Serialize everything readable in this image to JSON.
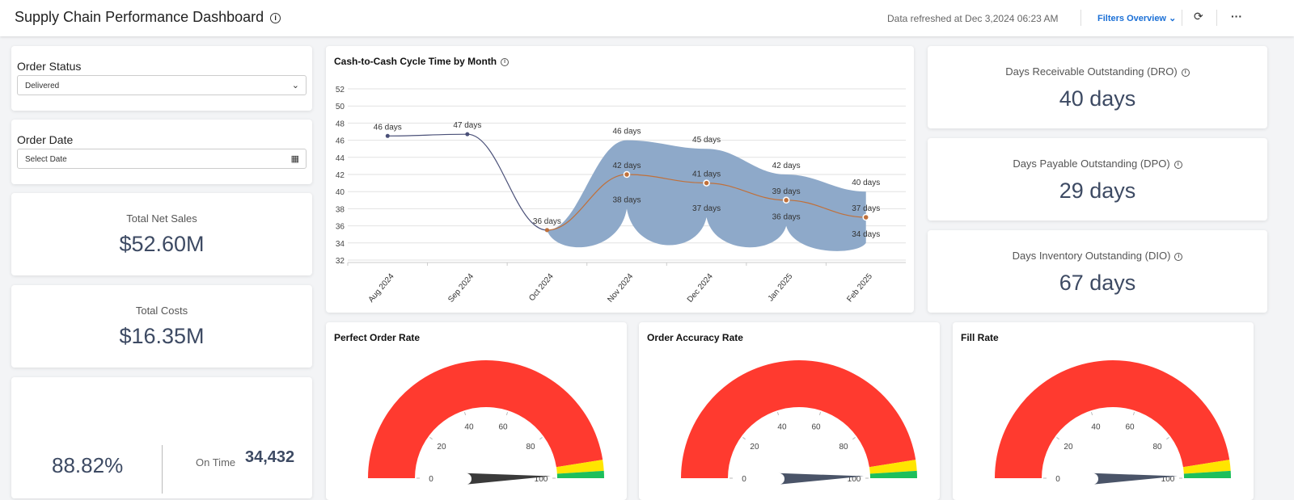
{
  "header": {
    "title": "Supply Chain Performance Dashboard",
    "refreshed": "Data refreshed at Dec 3,2024 06:23 AM",
    "filters_label": "Filters Overview"
  },
  "filters": {
    "order_status": {
      "label": "Order Status",
      "value": "Delivered"
    },
    "order_date": {
      "label": "Order Date",
      "placeholder": "Select Date"
    }
  },
  "kpis": {
    "net_sales": {
      "label": "Total Net Sales",
      "value": "$52.60M"
    },
    "costs": {
      "label": "Total Costs",
      "value": "$16.35M"
    },
    "on_time": {
      "percent": "88.82%",
      "label": "On Time",
      "count": "34,432"
    },
    "dro": {
      "label": "Days Receivable Outstanding (DRO)",
      "value": "40 days"
    },
    "dpo": {
      "label": "Days Payable Outstanding (DPO)",
      "value": "29 days"
    },
    "dio": {
      "label": "Days Inventory Outstanding (DIO)",
      "value": "67 days"
    }
  },
  "chart_data": [
    {
      "type": "line",
      "title": "Cash-to-Cash Cycle Time by Month",
      "categories": [
        "Aug 2024",
        "Sep 2024",
        "Oct 2024",
        "Nov 2024",
        "Dec 2024",
        "Jan 2025",
        "Feb 2025"
      ],
      "ylim": [
        32,
        52
      ],
      "yticks": [
        32,
        34,
        36,
        38,
        40,
        42,
        44,
        46,
        48,
        50,
        52
      ],
      "grid": true,
      "series": [
        {
          "kind": "actual",
          "color": "#4a5078",
          "values": [
            46.5,
            46.7,
            35.5,
            null,
            null,
            null,
            null
          ],
          "labels": [
            "46 days",
            "47 days",
            "36 days",
            null,
            null,
            null,
            null
          ]
        },
        {
          "kind": "forecast",
          "color": "#c0703a",
          "values": [
            null,
            null,
            35.5,
            42,
            41,
            39,
            37
          ],
          "labels": [
            null,
            null,
            null,
            "42 days",
            "41 days",
            "39 days",
            "37 days"
          ]
        },
        {
          "kind": "upper",
          "values": [
            null,
            null,
            35.5,
            46,
            45,
            42,
            40
          ],
          "labels": [
            null,
            null,
            null,
            "46 days",
            "45 days",
            "42 days",
            "40 days"
          ]
        },
        {
          "kind": "lower",
          "values": [
            null,
            null,
            35.5,
            38,
            37,
            36,
            34
          ],
          "labels": [
            null,
            null,
            null,
            "38 days",
            "37 days",
            "36 days",
            "34 days"
          ]
        }
      ],
      "band_color": "#8ea9c9"
    },
    {
      "type": "gauge",
      "title": "Perfect Order Rate",
      "min": 0,
      "max": 100,
      "ticks": [
        0,
        20,
        40,
        60,
        80,
        100
      ],
      "value": 99,
      "needle_color": "#3a3a3a",
      "ranges": [
        {
          "from": 0,
          "to": 95,
          "color": "#ff3a2f"
        },
        {
          "from": 95,
          "to": 98,
          "color": "#ffe500"
        },
        {
          "from": 98,
          "to": 100,
          "color": "#1dbf5c"
        }
      ]
    },
    {
      "type": "gauge",
      "title": "Order Accuracy Rate",
      "min": 0,
      "max": 100,
      "ticks": [
        0,
        20,
        40,
        60,
        80,
        100
      ],
      "value": 99,
      "needle_color": "#4a5468",
      "ranges": [
        {
          "from": 0,
          "to": 95,
          "color": "#ff3a2f"
        },
        {
          "from": 95,
          "to": 98,
          "color": "#ffe500"
        },
        {
          "from": 98,
          "to": 100,
          "color": "#1dbf5c"
        }
      ]
    },
    {
      "type": "gauge",
      "title": "Fill Rate",
      "min": 0,
      "max": 100,
      "ticks": [
        0,
        20,
        40,
        60,
        80,
        100
      ],
      "value": 99,
      "needle_color": "#4a5468",
      "ranges": [
        {
          "from": 0,
          "to": 95,
          "color": "#ff3a2f"
        },
        {
          "from": 95,
          "to": 98,
          "color": "#ffe500"
        },
        {
          "from": 98,
          "to": 100,
          "color": "#1dbf5c"
        }
      ]
    }
  ]
}
